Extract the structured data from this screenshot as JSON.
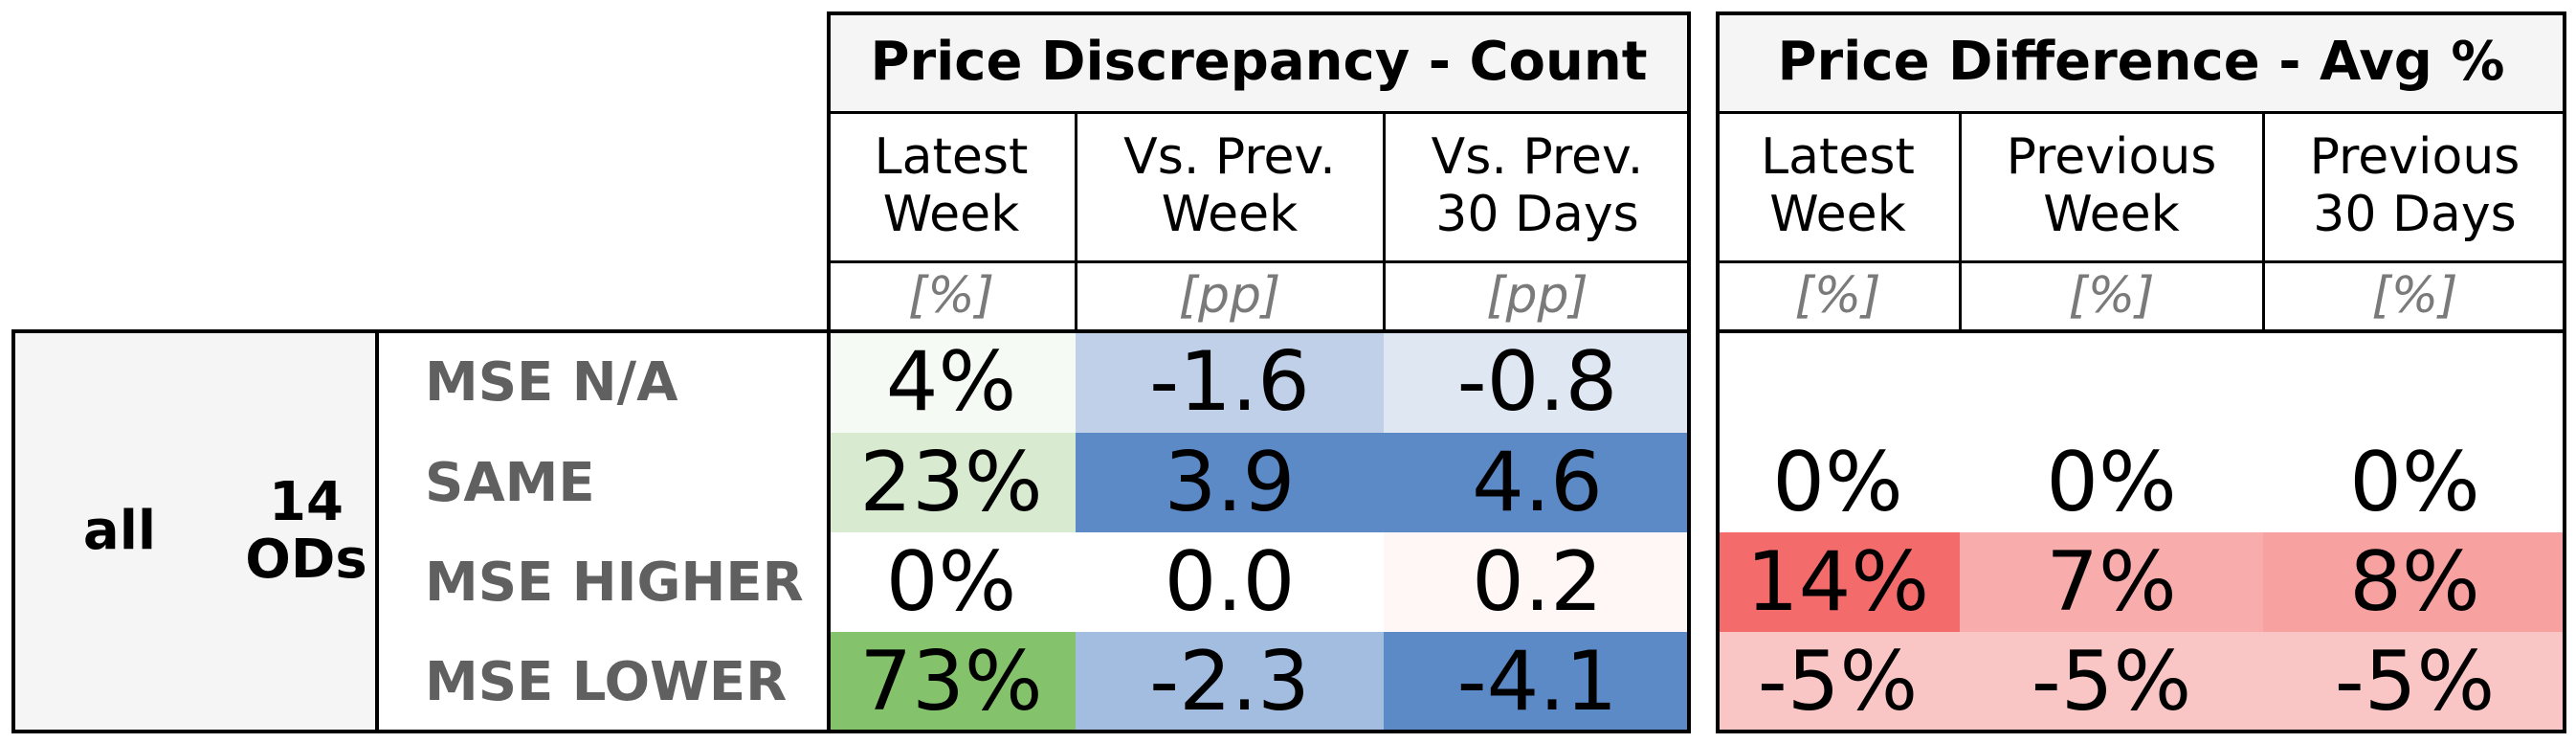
{
  "chart_data": {
    "type": "table",
    "segment": {
      "group": "all",
      "count_label": "14\nODs"
    },
    "row_labels": [
      "MSE N/A",
      "SAME",
      "MSE HIGHER",
      "MSE LOWER"
    ],
    "groups": [
      {
        "title": "Price Discrepancy - Count",
        "columns": [
          {
            "header": "Latest\nWeek",
            "unit": "[%]",
            "values": [
              "4%",
              "23%",
              "0%",
              "73%"
            ],
            "colors": [
              "#f6faf4",
              "#d8ead0",
              "#ffffff",
              "#84c36b"
            ]
          },
          {
            "header": "Vs. Prev.\nWeek",
            "unit": "[pp]",
            "values": [
              "-1.6",
              "3.9",
              "0.0",
              "-2.3"
            ],
            "colors": [
              "#bfd0e8",
              "#5b8ac6",
              "#ffffff",
              "#a3bde0"
            ]
          },
          {
            "header": "Vs. Prev.\n30 Days",
            "unit": "[pp]",
            "values": [
              "-0.8",
              "4.6",
              "0.2",
              "-4.1"
            ],
            "colors": [
              "#dfe7f3",
              "#5b8ac6",
              "#fff6f6",
              "#5b8ac6"
            ]
          }
        ]
      },
      {
        "title": "Price Difference - Avg %",
        "columns": [
          {
            "header": "Latest\nWeek",
            "unit": "[%]",
            "values": [
              "",
              "0%",
              "14%",
              "-5%"
            ],
            "colors": [
              "#ffffff",
              "#ffffff",
              "#f46b6b",
              "#fac5c5"
            ]
          },
          {
            "header": "Previous\nWeek",
            "unit": "[%]",
            "values": [
              "",
              "0%",
              "7%",
              "-5%"
            ],
            "colors": [
              "#ffffff",
              "#ffffff",
              "#f9acac",
              "#fac5c5"
            ]
          },
          {
            "header": "Previous\n30 Days",
            "unit": "[%]",
            "values": [
              "",
              "0%",
              "8%",
              "-5%"
            ],
            "colors": [
              "#ffffff",
              "#ffffff",
              "#f7a1a1",
              "#fac5c5"
            ]
          }
        ]
      }
    ]
  }
}
